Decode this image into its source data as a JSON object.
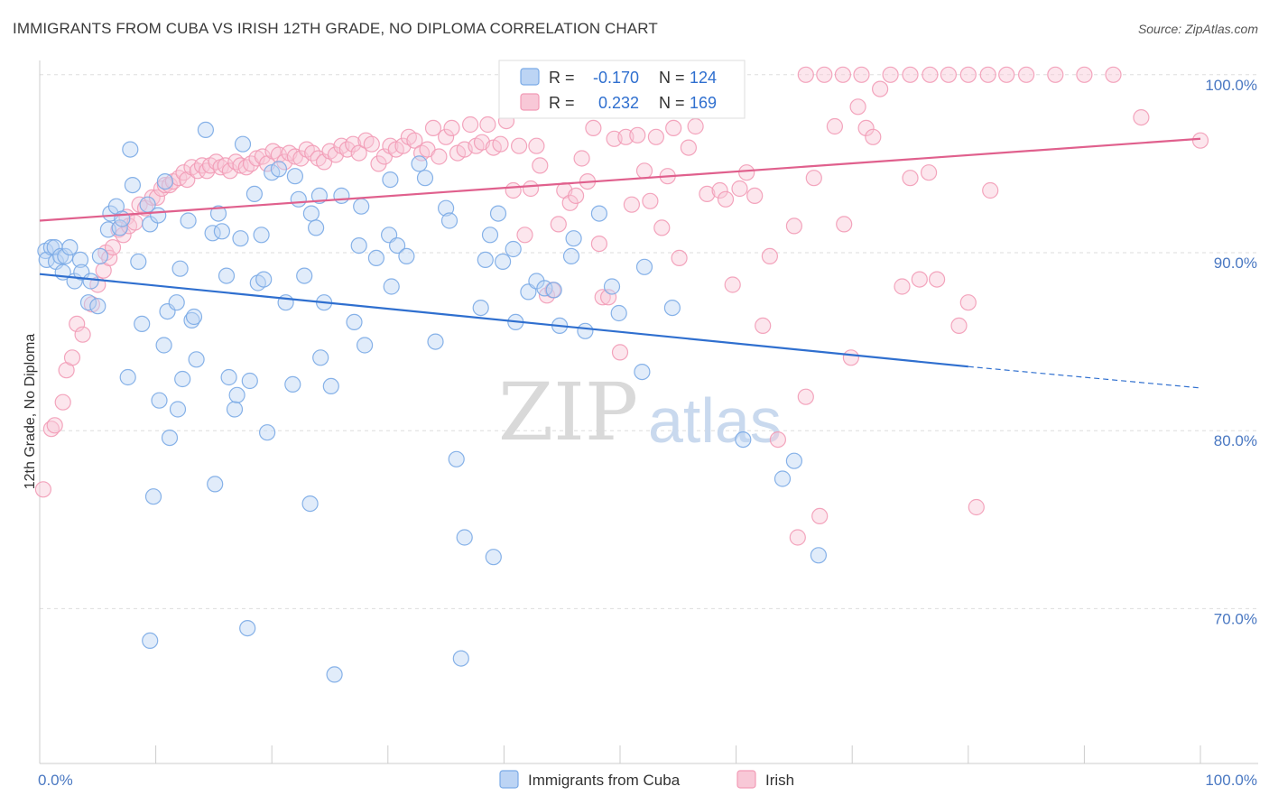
{
  "title": "IMMIGRANTS FROM CUBA VS IRISH 12TH GRADE, NO DIPLOMA CORRELATION CHART",
  "source": "Source: ZipAtlas.com",
  "watermark": {
    "zip": "ZIP",
    "atlas": "atlas"
  },
  "colors": {
    "cuba": "#7aaae6",
    "cuba_fill": "#bcd4f4",
    "cuba_line": "#2f6fcf",
    "irish": "#f29bb6",
    "irish_fill": "#f8c8d7",
    "irish_line": "#e0608d",
    "value_text": "#2f6fcf",
    "grid": "#dddddd"
  },
  "legend": {
    "r_label": "R =",
    "n_label": "N =",
    "cuba": {
      "r": "-0.170",
      "n": "124"
    },
    "irish": {
      "r": "0.232",
      "n": "169"
    }
  },
  "bottom_legend": {
    "cuba": "Immigrants from Cuba",
    "irish": "Irish"
  },
  "chart_data": {
    "type": "scatter",
    "xlabel": "",
    "ylabel": "12th Grade, No Diploma",
    "x_tick_labels": [
      "0.0%",
      "100.0%"
    ],
    "y_tick_labels": [
      "100.0%",
      "90.0%",
      "80.0%",
      "70.0%"
    ],
    "y_ticks": [
      100,
      90,
      80,
      70
    ],
    "xlim": [
      0,
      100
    ],
    "ylim": [
      61.3,
      100.8
    ],
    "grid": true,
    "legend_position": "top-center",
    "series": [
      {
        "name": "Immigrants from Cuba",
        "r": -0.17,
        "n": 124,
        "trend": {
          "x": [
            0,
            80,
            100
          ],
          "y": [
            88.8,
            83.6,
            82.4
          ],
          "solid_until": 80
        },
        "points": [
          [
            0.5,
            90.1
          ],
          [
            0.6,
            89.6
          ],
          [
            1.0,
            90.3
          ],
          [
            1.3,
            90.3
          ],
          [
            1.4,
            89.5
          ],
          [
            1.8,
            89.8
          ],
          [
            2.0,
            88.9
          ],
          [
            2.2,
            89.8
          ],
          [
            2.6,
            90.3
          ],
          [
            3.0,
            88.4
          ],
          [
            3.5,
            89.6
          ],
          [
            3.6,
            88.9
          ],
          [
            4.2,
            87.2
          ],
          [
            4.4,
            88.4
          ],
          [
            5.0,
            87.0
          ],
          [
            5.2,
            89.8
          ],
          [
            5.9,
            91.3
          ],
          [
            6.1,
            92.2
          ],
          [
            6.6,
            92.6
          ],
          [
            6.9,
            91.4
          ],
          [
            7.1,
            91.9
          ],
          [
            7.6,
            83.0
          ],
          [
            7.8,
            95.8
          ],
          [
            8.0,
            93.8
          ],
          [
            8.5,
            89.5
          ],
          [
            8.8,
            86.0
          ],
          [
            9.3,
            92.7
          ],
          [
            9.5,
            91.6
          ],
          [
            9.5,
            68.2
          ],
          [
            9.8,
            76.3
          ],
          [
            10.2,
            92.1
          ],
          [
            10.3,
            81.7
          ],
          [
            10.7,
            84.8
          ],
          [
            10.8,
            94.0
          ],
          [
            11.0,
            86.7
          ],
          [
            11.2,
            79.6
          ],
          [
            11.8,
            87.2
          ],
          [
            11.9,
            81.2
          ],
          [
            12.1,
            89.1
          ],
          [
            12.3,
            82.9
          ],
          [
            12.8,
            91.8
          ],
          [
            13.1,
            86.2
          ],
          [
            13.3,
            86.4
          ],
          [
            13.5,
            84.0
          ],
          [
            14.3,
            96.9
          ],
          [
            14.9,
            91.1
          ],
          [
            15.1,
            77.0
          ],
          [
            15.4,
            92.2
          ],
          [
            15.7,
            91.2
          ],
          [
            16.1,
            88.7
          ],
          [
            16.3,
            83.0
          ],
          [
            16.8,
            81.2
          ],
          [
            17.0,
            82.0
          ],
          [
            17.3,
            90.8
          ],
          [
            17.5,
            96.1
          ],
          [
            17.9,
            68.9
          ],
          [
            18.1,
            82.8
          ],
          [
            18.5,
            93.3
          ],
          [
            18.8,
            88.3
          ],
          [
            19.1,
            91.0
          ],
          [
            19.3,
            88.5
          ],
          [
            19.6,
            79.9
          ],
          [
            20.0,
            94.5
          ],
          [
            20.6,
            94.7
          ],
          [
            21.2,
            87.2
          ],
          [
            21.8,
            82.6
          ],
          [
            22.0,
            94.3
          ],
          [
            22.3,
            93.0
          ],
          [
            22.8,
            88.7
          ],
          [
            23.3,
            75.9
          ],
          [
            23.4,
            92.2
          ],
          [
            23.8,
            91.4
          ],
          [
            24.1,
            93.2
          ],
          [
            24.2,
            84.1
          ],
          [
            24.5,
            87.2
          ],
          [
            25.1,
            82.5
          ],
          [
            25.4,
            66.3
          ],
          [
            26.0,
            93.2
          ],
          [
            27.1,
            86.1
          ],
          [
            27.5,
            90.4
          ],
          [
            27.7,
            92.6
          ],
          [
            28.0,
            84.8
          ],
          [
            29.0,
            89.7
          ],
          [
            30.1,
            91.0
          ],
          [
            30.2,
            94.1
          ],
          [
            30.3,
            88.1
          ],
          [
            30.8,
            90.4
          ],
          [
            31.6,
            89.8
          ],
          [
            32.7,
            95.0
          ],
          [
            33.2,
            94.2
          ],
          [
            34.1,
            85.0
          ],
          [
            35.0,
            92.5
          ],
          [
            35.3,
            91.8
          ],
          [
            35.9,
            78.4
          ],
          [
            36.3,
            67.2
          ],
          [
            36.6,
            74.0
          ],
          [
            38.0,
            86.9
          ],
          [
            38.4,
            89.6
          ],
          [
            38.8,
            91.0
          ],
          [
            39.1,
            72.9
          ],
          [
            39.5,
            92.2
          ],
          [
            39.9,
            89.5
          ],
          [
            40.8,
            90.2
          ],
          [
            41.0,
            86.1
          ],
          [
            42.1,
            87.8
          ],
          [
            42.8,
            88.4
          ],
          [
            43.5,
            88.0
          ],
          [
            44.3,
            87.9
          ],
          [
            44.8,
            85.9
          ],
          [
            45.8,
            89.8
          ],
          [
            46.0,
            90.8
          ],
          [
            47.0,
            85.6
          ],
          [
            48.2,
            92.2
          ],
          [
            49.3,
            88.1
          ],
          [
            49.9,
            86.6
          ],
          [
            51.9,
            83.3
          ],
          [
            52.1,
            89.2
          ],
          [
            54.5,
            86.9
          ],
          [
            60.6,
            79.5
          ],
          [
            64.0,
            77.3
          ],
          [
            65.0,
            78.3
          ],
          [
            67.1,
            73.0
          ]
        ]
      },
      {
        "name": "Irish",
        "r": 0.232,
        "n": 169,
        "trend": {
          "x": [
            0,
            100
          ],
          "y": [
            91.8,
            96.4
          ]
        },
        "points": [
          [
            0.3,
            76.7
          ],
          [
            1.0,
            80.1
          ],
          [
            1.3,
            80.3
          ],
          [
            2.0,
            81.6
          ],
          [
            2.3,
            83.4
          ],
          [
            2.8,
            84.1
          ],
          [
            3.2,
            86.0
          ],
          [
            3.7,
            85.4
          ],
          [
            4.5,
            87.1
          ],
          [
            5.0,
            88.2
          ],
          [
            5.5,
            89.0
          ],
          [
            5.7,
            90.0
          ],
          [
            6.0,
            89.7
          ],
          [
            6.3,
            90.3
          ],
          [
            6.8,
            91.3
          ],
          [
            7.2,
            91.0
          ],
          [
            7.5,
            92.0
          ],
          [
            7.7,
            91.5
          ],
          [
            8.2,
            91.7
          ],
          [
            8.6,
            92.7
          ],
          [
            9.1,
            92.5
          ],
          [
            9.7,
            93.1
          ],
          [
            10.1,
            93.1
          ],
          [
            10.5,
            93.6
          ],
          [
            10.8,
            93.8
          ],
          [
            11.2,
            93.8
          ],
          [
            11.5,
            94.0
          ],
          [
            12.0,
            94.2
          ],
          [
            12.4,
            94.5
          ],
          [
            12.7,
            94.1
          ],
          [
            13.1,
            94.8
          ],
          [
            13.6,
            94.6
          ],
          [
            14.0,
            94.9
          ],
          [
            14.4,
            94.6
          ],
          [
            14.7,
            94.9
          ],
          [
            15.2,
            95.1
          ],
          [
            15.6,
            94.8
          ],
          [
            16.0,
            94.9
          ],
          [
            16.4,
            94.6
          ],
          [
            16.9,
            95.1
          ],
          [
            17.3,
            94.9
          ],
          [
            17.8,
            94.8
          ],
          [
            18.2,
            95.0
          ],
          [
            18.7,
            95.3
          ],
          [
            19.2,
            95.4
          ],
          [
            19.6,
            95.0
          ],
          [
            20.1,
            95.7
          ],
          [
            20.6,
            95.5
          ],
          [
            21.1,
            95.1
          ],
          [
            21.5,
            95.6
          ],
          [
            22.0,
            95.4
          ],
          [
            22.5,
            95.3
          ],
          [
            23.0,
            95.8
          ],
          [
            23.5,
            95.6
          ],
          [
            24.0,
            95.3
          ],
          [
            24.5,
            95.1
          ],
          [
            25.0,
            95.7
          ],
          [
            25.5,
            95.5
          ],
          [
            26.0,
            96.0
          ],
          [
            26.5,
            95.8
          ],
          [
            27.0,
            96.1
          ],
          [
            27.5,
            95.6
          ],
          [
            28.1,
            96.3
          ],
          [
            28.6,
            96.1
          ],
          [
            29.2,
            95.0
          ],
          [
            29.7,
            95.4
          ],
          [
            30.2,
            96.0
          ],
          [
            30.7,
            95.8
          ],
          [
            31.3,
            96.0
          ],
          [
            31.8,
            96.5
          ],
          [
            32.3,
            96.3
          ],
          [
            32.9,
            95.6
          ],
          [
            33.4,
            95.8
          ],
          [
            33.9,
            97.0
          ],
          [
            34.4,
            95.4
          ],
          [
            35.0,
            96.5
          ],
          [
            35.5,
            97.0
          ],
          [
            36.0,
            95.6
          ],
          [
            36.6,
            95.8
          ],
          [
            37.1,
            97.2
          ],
          [
            37.6,
            96.0
          ],
          [
            38.1,
            96.2
          ],
          [
            38.6,
            97.2
          ],
          [
            39.1,
            95.9
          ],
          [
            39.7,
            96.1
          ],
          [
            40.2,
            97.4
          ],
          [
            40.8,
            93.5
          ],
          [
            41.3,
            96.0
          ],
          [
            41.8,
            91.0
          ],
          [
            42.3,
            93.6
          ],
          [
            42.8,
            96.0
          ],
          [
            43.1,
            94.9
          ],
          [
            43.7,
            87.6
          ],
          [
            44.2,
            87.9
          ],
          [
            44.7,
            91.6
          ],
          [
            45.2,
            93.5
          ],
          [
            45.7,
            92.8
          ],
          [
            46.2,
            93.2
          ],
          [
            46.7,
            95.3
          ],
          [
            47.2,
            94.0
          ],
          [
            47.7,
            97.0
          ],
          [
            48.2,
            90.5
          ],
          [
            48.5,
            87.5
          ],
          [
            49.0,
            87.5
          ],
          [
            49.5,
            96.4
          ],
          [
            50.0,
            84.4
          ],
          [
            50.5,
            96.5
          ],
          [
            51.0,
            92.7
          ],
          [
            51.5,
            96.6
          ],
          [
            52.1,
            94.6
          ],
          [
            52.6,
            92.9
          ],
          [
            53.1,
            96.5
          ],
          [
            53.6,
            91.4
          ],
          [
            54.1,
            94.3
          ],
          [
            54.6,
            97.0
          ],
          [
            55.1,
            89.7
          ],
          [
            55.9,
            95.9
          ],
          [
            56.5,
            97.1
          ],
          [
            57.5,
            93.3
          ],
          [
            58.6,
            93.5
          ],
          [
            59.1,
            93.0
          ],
          [
            59.7,
            88.2
          ],
          [
            60.3,
            93.6
          ],
          [
            60.9,
            94.5
          ],
          [
            61.6,
            93.2
          ],
          [
            62.3,
            85.9
          ],
          [
            62.9,
            89.8
          ],
          [
            63.6,
            79.5
          ],
          [
            65.0,
            91.5
          ],
          [
            65.3,
            74.0
          ],
          [
            66.0,
            81.9
          ],
          [
            66.7,
            94.2
          ],
          [
            67.2,
            75.2
          ],
          [
            68.5,
            97.1
          ],
          [
            69.3,
            91.6
          ],
          [
            69.9,
            84.1
          ],
          [
            70.5,
            98.2
          ],
          [
            71.2,
            97.0
          ],
          [
            71.8,
            96.5
          ],
          [
            72.4,
            99.2
          ],
          [
            74.3,
            88.1
          ],
          [
            75.0,
            94.2
          ],
          [
            75.8,
            88.5
          ],
          [
            76.6,
            94.5
          ],
          [
            77.3,
            88.5
          ],
          [
            79.2,
            85.9
          ],
          [
            80.0,
            87.2
          ],
          [
            80.7,
            75.7
          ],
          [
            81.9,
            93.5
          ],
          [
            66.0,
            100.0
          ],
          [
            67.6,
            100.0
          ],
          [
            69.2,
            100.0
          ],
          [
            70.8,
            100.0
          ],
          [
            73.3,
            100.0
          ],
          [
            75.0,
            100.0
          ],
          [
            76.7,
            100.0
          ],
          [
            78.3,
            100.0
          ],
          [
            80.0,
            100.0
          ],
          [
            81.7,
            100.0
          ],
          [
            83.3,
            100.0
          ],
          [
            85.0,
            100.0
          ],
          [
            87.5,
            100.0
          ],
          [
            90.0,
            100.0
          ],
          [
            92.5,
            100.0
          ],
          [
            94.9,
            97.6
          ],
          [
            100.0,
            96.3
          ]
        ]
      }
    ]
  }
}
